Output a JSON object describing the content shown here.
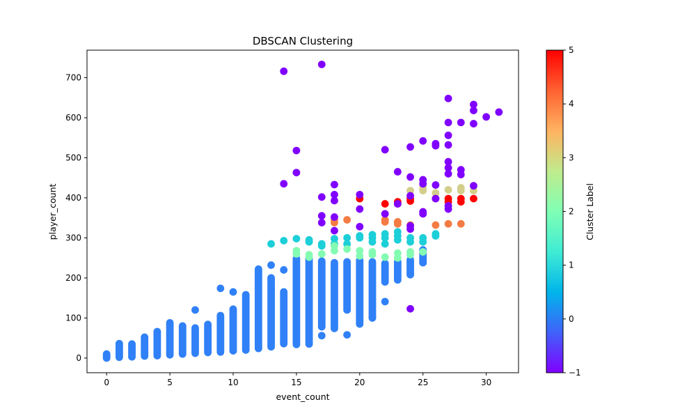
{
  "chart_data": {
    "type": "scatter",
    "title": "DBSCAN Clustering",
    "xlabel": "event_count",
    "ylabel": "player_count",
    "xlim": [
      -1.55,
      32.55
    ],
    "ylim": [
      -36.6,
      768.6
    ],
    "x_ticks": [
      0,
      5,
      10,
      15,
      20,
      25,
      30
    ],
    "y_ticks": [
      0,
      100,
      200,
      300,
      400,
      500,
      600,
      700
    ],
    "grid": false,
    "colorbar": {
      "label": "Cluster Label",
      "range": [
        -1,
        5
      ],
      "ticks": [
        -1,
        0,
        1,
        2,
        3,
        4,
        5
      ],
      "colormap": "rainbow"
    },
    "cluster_colors": {
      "-1": "#8000ff",
      "0": "#3081f7",
      "1": "#1ccfd8",
      "2": "#84fbb2",
      "3": "#d3ce8a",
      "4": "#f47c44",
      "5": "#ff0000"
    },
    "series": [
      {
        "cluster": 0,
        "columns": [
          {
            "x": 0,
            "min": 0,
            "max": 10
          },
          {
            "x": 1,
            "min": 2,
            "max": 36
          },
          {
            "x": 2,
            "min": 3,
            "max": 35
          },
          {
            "x": 3,
            "min": 5,
            "max": 52
          },
          {
            "x": 4,
            "min": 6,
            "max": 66
          },
          {
            "x": 5,
            "min": 8,
            "max": 88
          },
          {
            "x": 6,
            "min": 10,
            "max": 80
          },
          {
            "x": 7,
            "min": 12,
            "max": 75
          },
          {
            "x": 8,
            "min": 14,
            "max": 84
          },
          {
            "x": 9,
            "min": 15,
            "max": 106
          },
          {
            "x": 10,
            "min": 18,
            "max": 122
          },
          {
            "x": 11,
            "min": 20,
            "max": 158
          },
          {
            "x": 12,
            "min": 24,
            "max": 222
          },
          {
            "x": 13,
            "min": 28,
            "max": 200
          },
          {
            "x": 14,
            "min": 36,
            "max": 165
          },
          {
            "x": 15,
            "min": 34,
            "max": 248
          },
          {
            "x": 16,
            "min": 35,
            "max": 250
          },
          {
            "x": 17,
            "min": 78,
            "max": 242
          },
          {
            "x": 18,
            "min": 74,
            "max": 238
          },
          {
            "x": 19,
            "min": 120,
            "max": 240
          },
          {
            "x": 20,
            "min": 85,
            "max": 244
          },
          {
            "x": 21,
            "min": 100,
            "max": 240
          },
          {
            "x": 22,
            "min": 190,
            "max": 236
          },
          {
            "x": 23,
            "min": 195,
            "max": 240
          },
          {
            "x": 24,
            "min": 210,
            "max": 245
          },
          {
            "x": 25,
            "min": 238,
            "max": 270
          }
        ],
        "points": [
          {
            "x": 7,
            "y": 120
          },
          {
            "x": 9,
            "y": 174
          },
          {
            "x": 10,
            "y": 165
          },
          {
            "x": 13,
            "y": 232
          },
          {
            "x": 14,
            "y": 220
          },
          {
            "x": 17,
            "y": 56
          },
          {
            "x": 19,
            "y": 58
          },
          {
            "x": 21,
            "y": 102
          },
          {
            "x": 22,
            "y": 141
          },
          {
            "x": 24,
            "y": 208
          },
          {
            "x": 25,
            "y": 238
          }
        ]
      },
      {
        "cluster": 1,
        "points": [
          {
            "x": 13,
            "y": 285
          },
          {
            "x": 14,
            "y": 293
          },
          {
            "x": 15,
            "y": 298
          },
          {
            "x": 16,
            "y": 295
          },
          {
            "x": 16,
            "y": 290
          },
          {
            "x": 17,
            "y": 285
          },
          {
            "x": 17,
            "y": 280
          },
          {
            "x": 18,
            "y": 298
          },
          {
            "x": 18,
            "y": 285
          },
          {
            "x": 19,
            "y": 300
          },
          {
            "x": 19,
            "y": 285
          },
          {
            "x": 20,
            "y": 305
          },
          {
            "x": 20,
            "y": 300
          },
          {
            "x": 21,
            "y": 308
          },
          {
            "x": 21,
            "y": 300
          },
          {
            "x": 21,
            "y": 290
          },
          {
            "x": 22,
            "y": 310
          },
          {
            "x": 22,
            "y": 300
          },
          {
            "x": 22,
            "y": 285
          },
          {
            "x": 23,
            "y": 315
          },
          {
            "x": 23,
            "y": 305
          },
          {
            "x": 23,
            "y": 295
          },
          {
            "x": 24,
            "y": 300
          },
          {
            "x": 24,
            "y": 290
          },
          {
            "x": 25,
            "y": 300
          },
          {
            "x": 25,
            "y": 290
          },
          {
            "x": 26,
            "y": 310
          },
          {
            "x": 26,
            "y": 305
          }
        ]
      },
      {
        "cluster": 2,
        "points": [
          {
            "x": 15,
            "y": 268
          },
          {
            "x": 15,
            "y": 260
          },
          {
            "x": 16,
            "y": 258
          },
          {
            "x": 16,
            "y": 252
          },
          {
            "x": 17,
            "y": 260
          },
          {
            "x": 18,
            "y": 280
          },
          {
            "x": 18,
            "y": 268
          },
          {
            "x": 19,
            "y": 272
          },
          {
            "x": 20,
            "y": 268
          },
          {
            "x": 20,
            "y": 255
          },
          {
            "x": 21,
            "y": 265
          },
          {
            "x": 21,
            "y": 258
          },
          {
            "x": 22,
            "y": 252
          },
          {
            "x": 23,
            "y": 262
          },
          {
            "x": 23,
            "y": 250
          },
          {
            "x": 24,
            "y": 265
          },
          {
            "x": 24,
            "y": 258
          },
          {
            "x": 25,
            "y": 265
          }
        ]
      },
      {
        "cluster": 3,
        "points": [
          {
            "x": 24,
            "y": 418
          },
          {
            "x": 25,
            "y": 425
          },
          {
            "x": 25,
            "y": 418
          },
          {
            "x": 26,
            "y": 412
          },
          {
            "x": 27,
            "y": 420
          },
          {
            "x": 28,
            "y": 425
          },
          {
            "x": 28,
            "y": 418
          },
          {
            "x": 29,
            "y": 418
          }
        ]
      },
      {
        "cluster": 4,
        "points": [
          {
            "x": 18,
            "y": 345
          },
          {
            "x": 18,
            "y": 338
          },
          {
            "x": 19,
            "y": 345
          },
          {
            "x": 22,
            "y": 345
          },
          {
            "x": 22,
            "y": 340
          },
          {
            "x": 23,
            "y": 340
          },
          {
            "x": 23,
            "y": 335
          },
          {
            "x": 24,
            "y": 332
          },
          {
            "x": 26,
            "y": 332
          },
          {
            "x": 27,
            "y": 335
          },
          {
            "x": 28,
            "y": 335
          }
        ]
      },
      {
        "cluster": 5,
        "points": [
          {
            "x": 20,
            "y": 398
          },
          {
            "x": 22,
            "y": 385
          },
          {
            "x": 23,
            "y": 390
          },
          {
            "x": 23,
            "y": 385
          },
          {
            "x": 24,
            "y": 398
          },
          {
            "x": 24,
            "y": 392
          },
          {
            "x": 26,
            "y": 398
          },
          {
            "x": 27,
            "y": 398
          },
          {
            "x": 27,
            "y": 390
          },
          {
            "x": 28,
            "y": 398
          },
          {
            "x": 28,
            "y": 390
          },
          {
            "x": 29,
            "y": 398
          }
        ]
      },
      {
        "cluster": -1,
        "points": [
          {
            "x": 14,
            "y": 716
          },
          {
            "x": 17,
            "y": 733
          },
          {
            "x": 14,
            "y": 435
          },
          {
            "x": 15,
            "y": 518
          },
          {
            "x": 15,
            "y": 463
          },
          {
            "x": 17,
            "y": 402
          },
          {
            "x": 17,
            "y": 355
          },
          {
            "x": 17,
            "y": 338
          },
          {
            "x": 18,
            "y": 433
          },
          {
            "x": 18,
            "y": 408
          },
          {
            "x": 18,
            "y": 393
          },
          {
            "x": 18,
            "y": 352
          },
          {
            "x": 18,
            "y": 318
          },
          {
            "x": 20,
            "y": 408
          },
          {
            "x": 20,
            "y": 372
          },
          {
            "x": 20,
            "y": 328
          },
          {
            "x": 22,
            "y": 520
          },
          {
            "x": 22,
            "y": 360
          },
          {
            "x": 23,
            "y": 465
          },
          {
            "x": 23,
            "y": 385
          },
          {
            "x": 24,
            "y": 527
          },
          {
            "x": 24,
            "y": 452
          },
          {
            "x": 24,
            "y": 405
          },
          {
            "x": 24,
            "y": 330
          },
          {
            "x": 24,
            "y": 322
          },
          {
            "x": 24,
            "y": 123
          },
          {
            "x": 25,
            "y": 542
          },
          {
            "x": 25,
            "y": 445
          },
          {
            "x": 25,
            "y": 435
          },
          {
            "x": 25,
            "y": 365
          },
          {
            "x": 25,
            "y": 360
          },
          {
            "x": 26,
            "y": 535
          },
          {
            "x": 26,
            "y": 530
          },
          {
            "x": 26,
            "y": 432
          },
          {
            "x": 26,
            "y": 398
          },
          {
            "x": 27,
            "y": 648
          },
          {
            "x": 27,
            "y": 588
          },
          {
            "x": 27,
            "y": 556
          },
          {
            "x": 27,
            "y": 532
          },
          {
            "x": 27,
            "y": 490
          },
          {
            "x": 27,
            "y": 475
          },
          {
            "x": 27,
            "y": 460
          },
          {
            "x": 27,
            "y": 380
          },
          {
            "x": 27,
            "y": 372
          },
          {
            "x": 28,
            "y": 588
          },
          {
            "x": 28,
            "y": 470
          },
          {
            "x": 28,
            "y": 458
          },
          {
            "x": 29,
            "y": 633
          },
          {
            "x": 29,
            "y": 618
          },
          {
            "x": 29,
            "y": 585
          },
          {
            "x": 29,
            "y": 430
          },
          {
            "x": 30,
            "y": 602
          },
          {
            "x": 31,
            "y": 614
          }
        ]
      }
    ]
  }
}
